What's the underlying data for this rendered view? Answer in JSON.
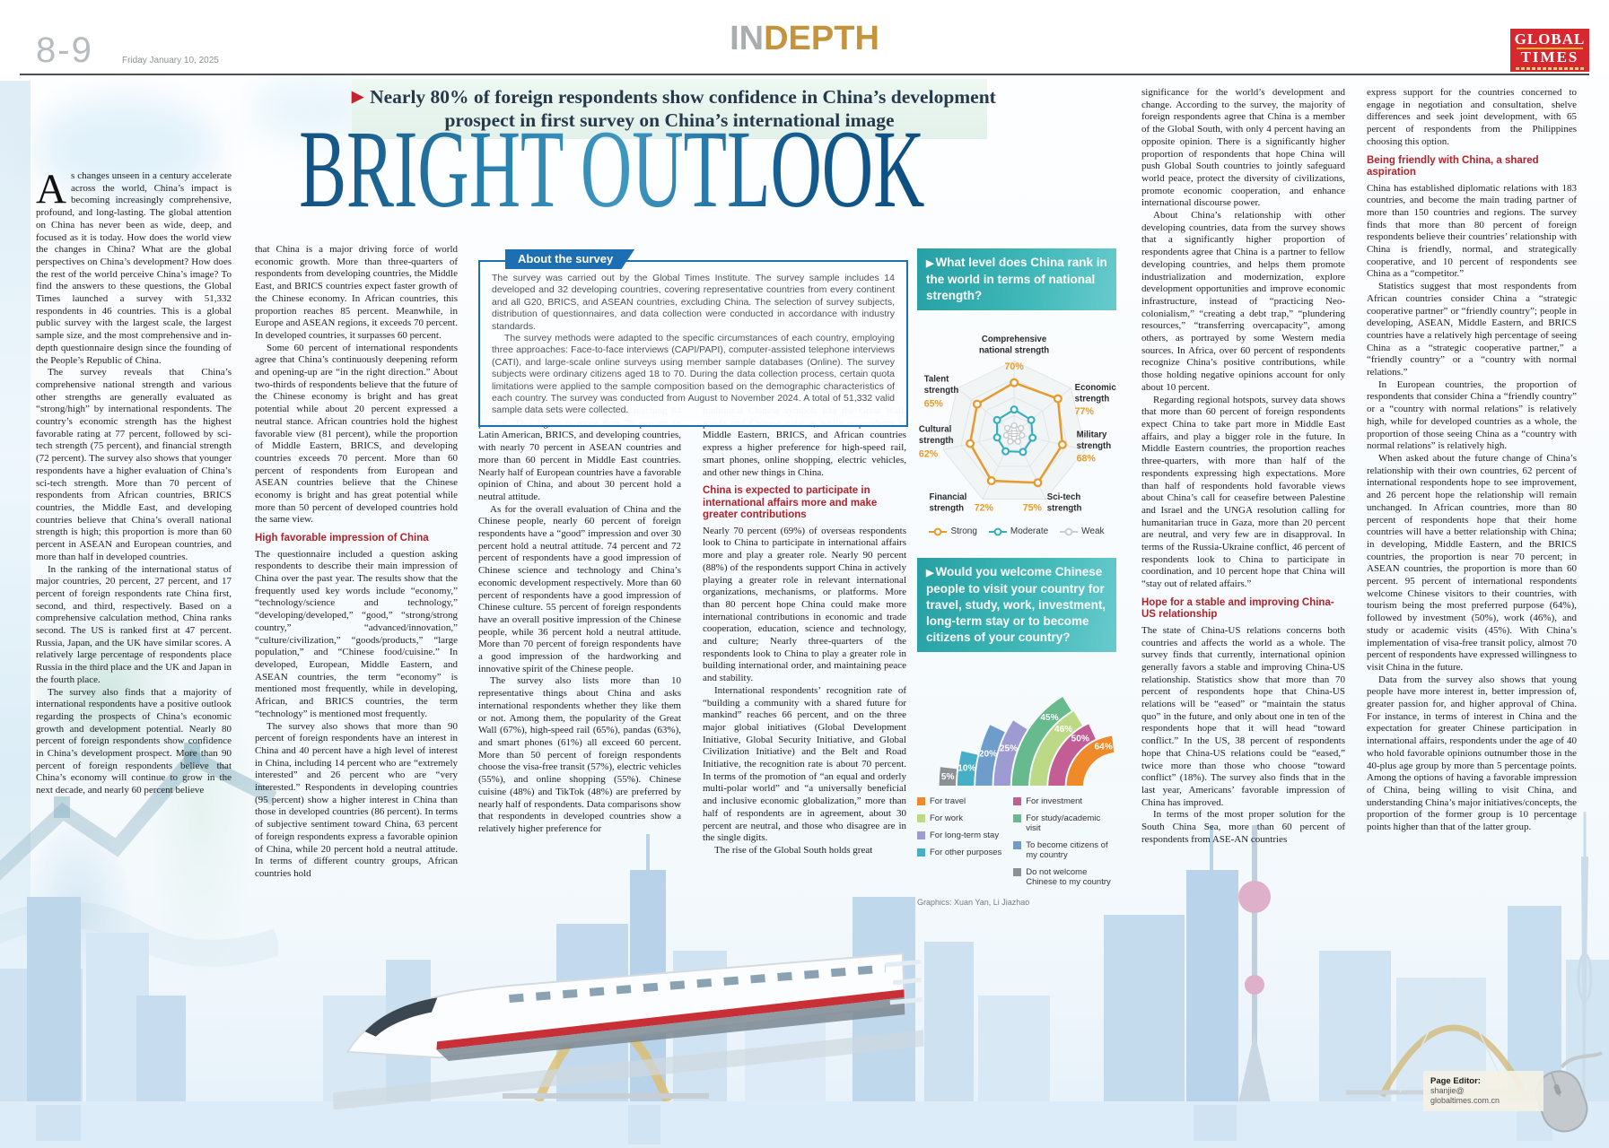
{
  "header": {
    "page_number": "8-9",
    "date": "Friday January 10, 2025",
    "section_in": "IN",
    "section_depth": "DEPTH",
    "logo_line1": "GLOBAL",
    "logo_line2": "TIMES"
  },
  "kicker": {
    "arrow": "▶",
    "line1": "Nearly 80% of foreign respondents show confidence in China’s development",
    "line2": "prospect in first survey on China’s international image"
  },
  "title": "BRIGHT OUTLOOK",
  "about": {
    "tab": "About the survey",
    "p1": "The survey was carried out by the Global Times Institute. The survey sample includes 14 developed and 32 developing countries, covering representative countries from every continent and all G20, BRICS, and ASEAN countries, excluding China. The selection of survey subjects, distribution of questionnaires, and data collection were conducted in accordance with industry standards.",
    "p2": "The survey methods were adapted to the specific circumstances of each country, employing three approaches: Face-to-face interviews (CAPI/PAPI), computer-assisted telephone interviews (CATI), and large-scale online surveys using member sample databases (Online). The survey subjects were ordinary citizens aged 18 to 70. During the data collection process, certain quota limitations were applied to the sample composition based on the demographic characteristics of each country. The survey was conducted from August to November 2024. A total of 51,332 valid sample data sets were collected."
  },
  "article": {
    "col1": [
      {
        "t": "drop",
        "cap": "A",
        "x": "s changes unseen in a century accelerate across the world, China’s impact is becoming increasingly comprehensive, profound, and long-lasting. The global attention on China has never been as wide, deep, and focused as it is today. How does the world view the changes in China? What are the global perspectives on China’s development? How does the rest of the world perceive China’s image? To find the answers to these questions, the Global Times launched a survey with 51,332 respondents in 46 countries. This is a global public survey with the largest scale, the largest sample size, and the most comprehensive and in-depth questionnaire design since the founding of the People’s Republic of China."
      },
      {
        "t": "p",
        "x": "The survey reveals that China’s comprehensive national strength and various other strengths are generally evaluated as “strong/high” by international respondents. The country’s economic strength has the highest favorable rating at 77 percent, followed by sci-tech strength (75 percent), and financial strength (72 percent). The survey also shows that younger respondents have a higher evaluation of China’s sci-tech strength. More than 70 percent of respondents from African countries, BRICS countries, the Middle East, and developing countries believe that China’s overall national strength is high; this proportion is more than 60 percent in ASEAN and European countries, and more than half in developed countries."
      },
      {
        "t": "p",
        "x": "In the ranking of the international status of major countries, 20 percent, 27 percent, and 17 percent of foreign respondents rate China first, second, and third, respectively. Based on a comprehensive calculation method, China ranks second. The US is ranked first at 47 percent. Russia, Japan, and the UK have similar scores. A relatively large percentage of respondents place Russia in the third place and the UK and Japan in the fourth place."
      },
      {
        "t": "p",
        "x": "The survey also finds that a majority of international respondents have a positive outlook regarding the prospects of China’s economic growth and development potential. Nearly 80 percent of foreign respondents show confidence in China’s development prospect. More than 90 percent of foreign respondents believe that China’s economy will continue to grow in the next decade, and nearly 60 percent believe"
      }
    ],
    "col2": [
      {
        "t": "p",
        "ni": 1,
        "x": "that China is a major driving force of world economic growth. More than three-quarters of respondents from developing countries, the Middle East, and BRICS countries expect faster growth of the Chinese economy. In African countries, this proportion reaches 85 percent. Meanwhile, in Europe and ASEAN regions, it exceeds 70 percent. In developed countries, it surpasses 60 percent."
      },
      {
        "t": "p",
        "x": "Some 60 percent of international respondents agree that China’s continuously deepening reform and opening-up are “in the right direction.” About two-thirds of respondents believe that the future of the Chinese economy is bright and has great potential while about 20 percent expressed a neutral stance. African countries hold the highest favorable view (81 percent), while the proportion of Middle Eastern, BRICS, and developing countries exceeds 70 percent. More than 60 percent of respondents from European and ASEAN countries believe that the Chinese economy is bright and has great potential while more than 50 percent of developed countries hold the same view."
      },
      {
        "t": "h",
        "x": "High favorable impression of China"
      },
      {
        "t": "p",
        "ni": 1,
        "x": "The questionnaire included a question asking respondents to describe their main impression of China over the past year. The results show that the frequently used key words include “economy,” “technology/science and technology,” “developing/developed,” “good,” “strong/strong country,” “advanced/innovation,” “culture/civilization,” “goods/products,” “large population,” and “Chinese food/cuisine.” In developed, European, Middle Eastern, and ASEAN countries, the term “economy” is mentioned most frequently, while in developing, African, and BRICS countries, the term “technology” is mentioned most frequently."
      },
      {
        "t": "p",
        "x": "The survey also shows that more than 90 percent of foreign respondents have an interest in China and 40 percent have a high level of interest in China, including 14 percent who are “extremely interested” and 26 percent who are “very interested.” Respondents in developing countries (95 percent) show a higher interest in China than those in developed countries (86 percent). In terms of subjective sentiment toward China, 63 percent of foreign respondents express a favorable opinion of China, while 20 percent hold a neutral attitude. In terms of different country groups, African countries hold"
      }
    ],
    "col3": [
      {
        "t": "p",
        "ni": 1,
        "x": "the highest favorable view of China, reaching 84 percent. This figure is more than 70 percent in Latin American, BRICS, and developing countries, with nearly 70 percent in ASEAN countries and more than 60 percent in Middle East countries. Nearly half of European countries have a favorable opinion of China, and about 30 percent hold a neutral attitude."
      },
      {
        "t": "p",
        "x": "As for the overall evaluation of China and the Chinese people, nearly 60 percent of foreign respondents have a “good” impression and over 30 percent hold a neutral attitude. 74 percent and 72 percent of respondents have a good impression of Chinese science and technology and China’s economic development respectively. More than 60 percent of respondents have a good impression of Chinese culture. 55 percent of foreign respondents have an overall positive impression of the Chinese people, while 36 percent hold a neutral attitude. More than 70 percent of foreign respondents have a good impression of the hardworking and innovative spirit of the Chinese people."
      },
      {
        "t": "p",
        "x": "The survey also lists more than 10 representative things about China and asks international respondents whether they like them or not. Among them, the popularity of the Great Wall (67%), high-speed rail (65%), pandas (63%), and smart phones (61%) all exceed 60 percent. More than 50 percent of foreign respondents choose the visa-free transit (57%), electric vehicles (55%), and online shopping (55%). Chinese cuisine (48%) and TikTok (48%) are preferred by nearly half of respondents. Data comparisons show that respondents in developed countries show a relatively higher preference for"
      }
    ],
    "col4": [
      {
        "t": "p",
        "ni": 1,
        "x": "traditional Chinese symbols like the Great Wall, panda and Chinese cuisine, while respondents in Middle Eastern, BRICS, and African countries express a higher preference for high-speed rail, smart phones, online shopping, electric vehicles, and other new things in China."
      },
      {
        "t": "h",
        "x": "China is expected to participate in international affairs more and make greater contributions"
      },
      {
        "t": "p",
        "ni": 1,
        "x": "Nearly 70 percent (69%) of overseas respondents look to China to participate in international affairs more and play a greater role. Nearly 90 percent (88%) of the respondents support China in actively playing a greater role in relevant international organizations, mechanisms, or platforms. More than 80 percent hope China could make more international contributions in economic and trade cooperation, education, science and technology, and culture; Nearly three-quarters of the respondents look to China to play a greater role in building international order, and maintaining peace and stability."
      },
      {
        "t": "p",
        "x": "International respondents’ recognition rate of “building a community with a shared future for mankind” reaches 66 percent, and on the three major global initiatives (Global Development Initiative, Global Security Initiative, and Global Civilization Initiative) and the Belt and Road Initiative, the recognition rate is about 70 percent. In terms of the promotion of “an equal and orderly multi-polar world” and “a universally beneficial and inclusive economic globalization,” more than half of respondents are in agreement, about 30 percent are neutral, and those who disagree are in the single digits."
      },
      {
        "t": "p",
        "x": "The rise of the Global South holds great"
      }
    ],
    "col6": [
      {
        "t": "p",
        "ni": 1,
        "x": "significance for the world’s development and change. According to the survey, the majority of foreign respondents agree that China is a member of the Global South, with only 4 percent having an opposite opinion. There is a significantly higher proportion of respondents that hope China will push Global South countries to jointly safeguard world peace, protect the diversity of civilizations, promote economic cooperation, and enhance international discourse power."
      },
      {
        "t": "p",
        "x": "About China’s relationship with other developing countries, data from the survey shows that a significantly higher proportion of respondents agree that China is a partner to fellow developing countries, and helps them promote industrialization and modernization, explore development opportunities and improve economic infrastructure, instead of “practicing Neo-colonialism,” “creating a debt trap,” “plundering resources,” “transferring overcapacity”, among others, as portrayed by some Western media sources. In Africa, over 60 percent of respondents recognize China’s positive contributions, while those holding negative opinions account for only about 10 percent."
      },
      {
        "t": "p",
        "x": "Regarding regional hotspots, survey data shows that more than 60 percent of foreign respondents expect China to take part more in Middle East affairs, and play a bigger role in the future. In Middle Eastern countries, the proportion reaches three-quarters, with more than half of the respondents expressing high expectations. More than half of respondents hold favorable views about China’s call for ceasefire between Palestine and Israel and the UNGA resolution calling for humanitarian truce in Gaza, more than 20 percent are neutral, and very few are in disapproval. In terms of the Russia-Ukraine conflict, 46 percent of respondents look to China to participate in coordination, and 10 percent hope that China will “stay out of related affairs.”"
      },
      {
        "t": "h",
        "x": "Hope for a stable and improving China-US relationship"
      },
      {
        "t": "p",
        "ni": 1,
        "x": "The state of China-US relations concerns both countries and affects the world as a whole. The survey finds that currently, international opinion generally favors a stable and improving China-US relationship. Statistics show that more than 70 percent of respondents hope that China-US relations will be “eased” or “maintain the status quo” in the future, and only about one in ten of the respondents hope that it will head “toward conflict.” In the US, 38 percent of respondents hope that China-US relations could be “eased,” twice more than those who choose “toward conflict” (18%). The survey also finds that in the last year, Americans’ favorable impression of China has improved."
      },
      {
        "t": "p",
        "x": "In terms of the most proper solution for the South China Sea, more than 60 percent of respondents from ASE-AN countries"
      }
    ],
    "col7": [
      {
        "t": "p",
        "ni": 1,
        "x": "express support for the countries concerned to engage in negotiation and consultation, shelve differences and seek joint development, with 65 percent of respondents from the Philippines choosing this option."
      },
      {
        "t": "h",
        "x": "Being friendly with China, a shared aspiration"
      },
      {
        "t": "p",
        "ni": 1,
        "x": "China has established diplomatic relations with 183 countries, and become the main trading partner of more than 150 countries and regions. The survey finds that more than 80 percent of foreign respondents believe their countries’ relationship with China is friendly, normal, and strategically cooperative, and 10 percent of respondents see China as a “competitor.”"
      },
      {
        "t": "p",
        "x": "Statistics suggest that most respondents from African countries consider China a “strategic cooperative partner” or “friendly country”; people in developing, ASEAN, Middle Eastern, and BRICS countries have a relatively high percentage of seeing China as a “strategic cooperative partner,” a “friendly country” or a “country with normal relations.”"
      },
      {
        "t": "p",
        "x": "In European countries, the proportion of respondents that consider China a “friendly country” or a “country with normal relations” is relatively high, while for developed countries as a whole, the proportion of those seeing China as a “country with normal relations” is relatively high."
      },
      {
        "t": "p",
        "x": "When asked about the future change of China’s relationship with their own countries, 62 percent of international respondents hope to see improvement, and 26 percent hope the relationship will remain unchanged. In African countries, more than 80 percent of respondents hope that their home countries will have a better relationship with China; in developing, Middle Eastern, and the BRICS countries, the proportion is near 70 percent; in ASEAN countries, the proportion is more than 60 percent. 95 percent of international respondents welcome Chinese visitors to their countries, with tourism being the most preferred purpose (64%), followed by investment (50%), work (46%), and study or academic visits (45%). With China’s implementation of visa-free transit policy, almost 70 percent of respondents have expressed willingness to visit China in the future."
      },
      {
        "t": "p",
        "x": "Data from the survey also shows that young people have more interest in, better impression of, greater passion for, and higher approval of China. For instance, in terms of interest in China and the expectation for greater Chinese participation in international affairs, respondents under the age of 40 who hold favorable opinions outnumber those in the 40-plus age group by more than 5 percentage points. Among the options of having a favorable impression of China, being willing to visit China, and understanding China’s major initiatives/concepts, the proportion of the former group is 10 percentage points higher than that of the latter group."
      }
    ]
  },
  "chart_data": [
    {
      "type": "radar",
      "title": "What level does China rank in the world in terms of national strength?",
      "categories": [
        "Comprehensive national strength",
        "Economic strength",
        "Military strength",
        "Sci-tech strength",
        "Financial strength",
        "Cultural strength",
        "Talent strength"
      ],
      "series": [
        {
          "name": "Strong",
          "color": "#E79A2E",
          "values": [
            70,
            77,
            68,
            75,
            72,
            62,
            65
          ],
          "labeled": true
        },
        {
          "name": "Moderate",
          "color": "#35AEC2",
          "values": [
            33,
            30,
            26,
            28,
            27,
            24,
            30
          ],
          "estimated": true
        },
        {
          "name": "Weak",
          "color": "#C9CDD0",
          "values": [
            11,
            12,
            11,
            12,
            12,
            11,
            12
          ],
          "estimated": true
        }
      ],
      "value_suffix": "%",
      "axis_range": [
        0,
        100
      ],
      "grid": true,
      "legend_position": "bottom"
    },
    {
      "type": "radial_bar",
      "title": "Would you welcome Chinese people to visit your country for travel, study, work, investment, long-term stay or to become citizens of your country?",
      "items": [
        {
          "label": "For travel",
          "value": 64,
          "color": "#EE8A2A"
        },
        {
          "label": "For investment",
          "value": 50,
          "color": "#C25D96"
        },
        {
          "label": "For work",
          "value": 46,
          "color": "#BCD985"
        },
        {
          "label": "For study/academic visit",
          "value": 45,
          "color": "#66BA8D"
        },
        {
          "label": "For long-term stay",
          "value": 25,
          "color": "#9D9BD1"
        },
        {
          "label": "To become citizens of my country",
          "value": 20,
          "color": "#6E9CCB"
        },
        {
          "label": "For other purposes",
          "value": 10,
          "color": "#46AEC6"
        },
        {
          "label": "Do not welcome Chinese to my country",
          "value": 5,
          "color": "#8E9194"
        }
      ],
      "legend_columns": [
        [
          "For travel",
          "For work",
          "For long-term stay",
          "For other purposes"
        ],
        [
          "For investment",
          "For study/academic visit",
          "To become citizens of my country",
          "Do not welcome Chinese to my country"
        ]
      ],
      "value_suffix": "%"
    }
  ],
  "charts_misc": {
    "arrow": "▶",
    "credit": "Graphics: Xuan Yan, Li Jiazhao"
  },
  "footer": {
    "page_editor_label": "Page Editor:",
    "email_line1": "shanjie@",
    "email_line2": "globaltimes.com.cn"
  },
  "colors": {
    "teal_box": "#2FA9AC",
    "heading_red": "#B0232B",
    "accent_red": "#C4242D",
    "tab_blue": "#1D6FB3",
    "title_blue": "#15639B",
    "gold": "#C3943C",
    "logo_red": "#D6282E"
  }
}
